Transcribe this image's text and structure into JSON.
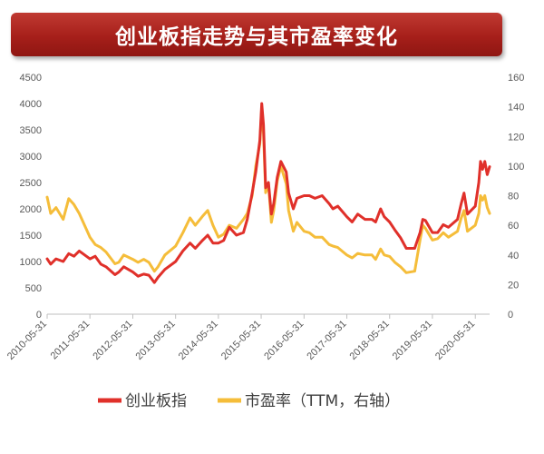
{
  "title": "创业板指走势与其市盈率变化",
  "chart_data": {
    "type": "line",
    "title": "创业板指走势与其市盈率变化",
    "x_tick_labels": [
      "2010-05-31",
      "2011-05-31",
      "2012-05-31",
      "2013-05-31",
      "2014-05-31",
      "2015-05-31",
      "2016-05-31",
      "2017-05-31",
      "2018-05-31",
      "2019-05-31",
      "2020-05-31"
    ],
    "x_range": [
      "2010-05-31",
      "2020-09-30"
    ],
    "y_left": {
      "min": 0,
      "max": 4500,
      "ticks": [
        0,
        500,
        1000,
        1500,
        2000,
        2500,
        3000,
        3500,
        4000,
        4500
      ]
    },
    "y_right": {
      "min": 0,
      "max": 160,
      "ticks": [
        0,
        20,
        40,
        60,
        80,
        100,
        120,
        140,
        160
      ]
    },
    "grid": false,
    "legend_position": "bottom",
    "series": [
      {
        "name": "创业板指",
        "axis": "left",
        "color": "#e0302a",
        "points": [
          [
            "2010-05-31",
            1050
          ],
          [
            "2010-06-30",
            950
          ],
          [
            "2010-08-15",
            1050
          ],
          [
            "2010-10-15",
            1000
          ],
          [
            "2010-12-01",
            1150
          ],
          [
            "2011-01-15",
            1100
          ],
          [
            "2011-03-01",
            1200
          ],
          [
            "2011-05-31",
            1050
          ],
          [
            "2011-07-15",
            1100
          ],
          [
            "2011-09-01",
            950
          ],
          [
            "2011-10-15",
            900
          ],
          [
            "2011-12-31",
            750
          ],
          [
            "2012-02-01",
            800
          ],
          [
            "2012-03-15",
            900
          ],
          [
            "2012-05-31",
            800
          ],
          [
            "2012-07-15",
            720
          ],
          [
            "2012-09-01",
            760
          ],
          [
            "2012-10-15",
            740
          ],
          [
            "2012-12-01",
            600
          ],
          [
            "2013-01-01",
            700
          ],
          [
            "2013-03-01",
            850
          ],
          [
            "2013-05-31",
            1000
          ],
          [
            "2013-08-01",
            1200
          ],
          [
            "2013-10-01",
            1350
          ],
          [
            "2013-11-15",
            1250
          ],
          [
            "2014-01-15",
            1400
          ],
          [
            "2014-03-01",
            1500
          ],
          [
            "2014-04-15",
            1350
          ],
          [
            "2014-05-31",
            1350
          ],
          [
            "2014-07-15",
            1400
          ],
          [
            "2014-09-01",
            1650
          ],
          [
            "2014-11-01",
            1500
          ],
          [
            "2014-12-31",
            1550
          ],
          [
            "2015-02-01",
            1800
          ],
          [
            "2015-03-15",
            2300
          ],
          [
            "2015-04-15",
            2700
          ],
          [
            "2015-05-20",
            3300
          ],
          [
            "2015-06-05",
            4000
          ],
          [
            "2015-06-20",
            3600
          ],
          [
            "2015-07-08",
            2400
          ],
          [
            "2015-08-01",
            2500
          ],
          [
            "2015-08-26",
            1900
          ],
          [
            "2015-09-15",
            2100
          ],
          [
            "2015-10-15",
            2600
          ],
          [
            "2015-11-15",
            2900
          ],
          [
            "2015-12-31",
            2700
          ],
          [
            "2016-01-20",
            2300
          ],
          [
            "2016-02-29",
            2000
          ],
          [
            "2016-03-31",
            2200
          ],
          [
            "2016-05-31",
            2250
          ],
          [
            "2016-07-15",
            2250
          ],
          [
            "2016-09-01",
            2200
          ],
          [
            "2016-11-01",
            2250
          ],
          [
            "2016-12-31",
            2100
          ],
          [
            "2017-02-01",
            2000
          ],
          [
            "2017-03-15",
            2050
          ],
          [
            "2017-05-31",
            1850
          ],
          [
            "2017-07-15",
            1750
          ],
          [
            "2017-09-01",
            1900
          ],
          [
            "2017-11-01",
            1800
          ],
          [
            "2017-12-31",
            1800
          ],
          [
            "2018-02-01",
            1750
          ],
          [
            "2018-03-15",
            2000
          ],
          [
            "2018-04-15",
            1850
          ],
          [
            "2018-05-31",
            1750
          ],
          [
            "2018-07-15",
            1600
          ],
          [
            "2018-09-01",
            1450
          ],
          [
            "2018-10-20",
            1250
          ],
          [
            "2018-12-31",
            1250
          ],
          [
            "2019-02-15",
            1550
          ],
          [
            "2019-03-10",
            1800
          ],
          [
            "2019-04-01",
            1780
          ],
          [
            "2019-05-31",
            1550
          ],
          [
            "2019-07-15",
            1550
          ],
          [
            "2019-09-01",
            1700
          ],
          [
            "2019-10-15",
            1650
          ],
          [
            "2019-12-31",
            1800
          ],
          [
            "2020-02-01",
            2100
          ],
          [
            "2020-02-25",
            2300
          ],
          [
            "2020-03-25",
            1900
          ],
          [
            "2020-05-31",
            2050
          ],
          [
            "2020-06-30",
            2500
          ],
          [
            "2020-07-15",
            2900
          ],
          [
            "2020-08-01",
            2750
          ],
          [
            "2020-08-20",
            2900
          ],
          [
            "2020-09-10",
            2650
          ],
          [
            "2020-09-30",
            2800
          ]
        ]
      },
      {
        "name": "市盈率（TTM，右轴）",
        "axis": "right",
        "color": "#f5bd3a",
        "points": [
          [
            "2010-05-31",
            79
          ],
          [
            "2010-06-30",
            68
          ],
          [
            "2010-08-15",
            72
          ],
          [
            "2010-10-15",
            64
          ],
          [
            "2010-12-01",
            78
          ],
          [
            "2011-01-15",
            74
          ],
          [
            "2011-03-01",
            68
          ],
          [
            "2011-05-31",
            52
          ],
          [
            "2011-07-15",
            47
          ],
          [
            "2011-09-01",
            45
          ],
          [
            "2011-10-15",
            42
          ],
          [
            "2011-12-31",
            34
          ],
          [
            "2012-02-01",
            35
          ],
          [
            "2012-03-15",
            40
          ],
          [
            "2012-05-31",
            37
          ],
          [
            "2012-07-15",
            35
          ],
          [
            "2012-09-01",
            37
          ],
          [
            "2012-10-15",
            35
          ],
          [
            "2012-12-01",
            29
          ],
          [
            "2013-01-01",
            32
          ],
          [
            "2013-03-01",
            40
          ],
          [
            "2013-05-31",
            46
          ],
          [
            "2013-08-01",
            55
          ],
          [
            "2013-10-01",
            65
          ],
          [
            "2013-11-15",
            60
          ],
          [
            "2014-01-15",
            66
          ],
          [
            "2014-03-01",
            70
          ],
          [
            "2014-04-15",
            60
          ],
          [
            "2014-05-31",
            52
          ],
          [
            "2014-07-15",
            54
          ],
          [
            "2014-09-01",
            60
          ],
          [
            "2014-11-01",
            58
          ],
          [
            "2014-12-31",
            64
          ],
          [
            "2015-02-01",
            68
          ],
          [
            "2015-03-15",
            80
          ],
          [
            "2015-04-15",
            100
          ],
          [
            "2015-05-20",
            115
          ],
          [
            "2015-06-05",
            140
          ],
          [
            "2015-06-20",
            122
          ],
          [
            "2015-07-08",
            82
          ],
          [
            "2015-08-01",
            88
          ],
          [
            "2015-08-26",
            62
          ],
          [
            "2015-09-15",
            70
          ],
          [
            "2015-10-15",
            90
          ],
          [
            "2015-11-15",
            100
          ],
          [
            "2015-12-31",
            88
          ],
          [
            "2016-01-20",
            70
          ],
          [
            "2016-02-29",
            56
          ],
          [
            "2016-03-31",
            62
          ],
          [
            "2016-05-31",
            56
          ],
          [
            "2016-07-15",
            55
          ],
          [
            "2016-09-01",
            52
          ],
          [
            "2016-11-01",
            52
          ],
          [
            "2016-12-31",
            47
          ],
          [
            "2017-02-01",
            46
          ],
          [
            "2017-03-15",
            45
          ],
          [
            "2017-05-31",
            40
          ],
          [
            "2017-07-15",
            38
          ],
          [
            "2017-09-01",
            41
          ],
          [
            "2017-11-01",
            40
          ],
          [
            "2017-12-31",
            40
          ],
          [
            "2018-02-01",
            37
          ],
          [
            "2018-03-15",
            44
          ],
          [
            "2018-04-15",
            40
          ],
          [
            "2018-05-31",
            39
          ],
          [
            "2018-07-15",
            35
          ],
          [
            "2018-09-01",
            32
          ],
          [
            "2018-10-20",
            28
          ],
          [
            "2018-12-31",
            29
          ],
          [
            "2019-02-15",
            50
          ],
          [
            "2019-03-10",
            60
          ],
          [
            "2019-04-01",
            58
          ],
          [
            "2019-05-31",
            50
          ],
          [
            "2019-07-15",
            51
          ],
          [
            "2019-09-01",
            55
          ],
          [
            "2019-10-15",
            52
          ],
          [
            "2019-12-31",
            56
          ],
          [
            "2020-02-01",
            65
          ],
          [
            "2020-02-25",
            70
          ],
          [
            "2020-03-25",
            56
          ],
          [
            "2020-05-31",
            60
          ],
          [
            "2020-06-30",
            68
          ],
          [
            "2020-07-15",
            80
          ],
          [
            "2020-08-01",
            77
          ],
          [
            "2020-08-20",
            80
          ],
          [
            "2020-09-10",
            72
          ],
          [
            "2020-09-30",
            68
          ]
        ]
      }
    ],
    "legend": [
      {
        "label": "创业板指",
        "color": "#e0302a"
      },
      {
        "label": "市盈率（TTM，右轴）",
        "color": "#f5bd3a"
      }
    ]
  }
}
